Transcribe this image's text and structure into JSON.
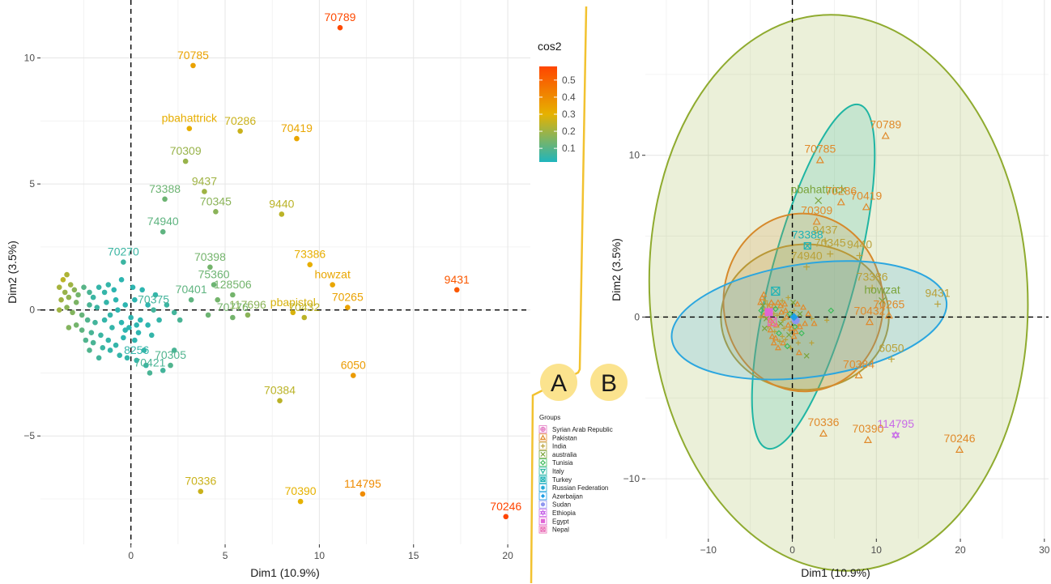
{
  "chart_data": [
    {
      "panel": "A",
      "type": "scatter",
      "xlabel": "Dim1 (10.9%)",
      "ylabel": "Dim2 (3.5%)",
      "xlim": [
        -4.8,
        21.2
      ],
      "ylim": [
        -9.3,
        12.3
      ],
      "xticks": [
        0,
        5,
        10,
        15,
        20
      ],
      "yticks": [
        -5,
        0,
        5,
        10
      ],
      "grid": true,
      "reference_lines": {
        "x": 0,
        "y": 0
      },
      "color_legend": {
        "title": "cos2",
        "ticks": [
          0.1,
          0.2,
          0.3,
          0.4,
          0.5
        ],
        "range": [
          0.02,
          0.58
        ],
        "colors": [
          "#1fb5bd",
          "#e6b200",
          "#ff4500"
        ],
        "placement": "top-right"
      },
      "labeled_points": [
        {
          "label": "70789",
          "x": 11.1,
          "y": 11.2,
          "cos2": 0.57
        },
        {
          "label": "70785",
          "x": 3.3,
          "y": 9.7,
          "cos2": 0.34
        },
        {
          "label": "pbahattrick",
          "x": 3.1,
          "y": 7.2,
          "cos2": 0.31
        },
        {
          "label": "70286",
          "x": 5.8,
          "y": 7.1,
          "cos2": 0.26
        },
        {
          "label": "70419",
          "x": 8.8,
          "y": 6.8,
          "cos2": 0.33
        },
        {
          "label": "70309",
          "x": 2.9,
          "y": 5.9,
          "cos2": 0.19
        },
        {
          "label": "9437",
          "x": 3.9,
          "y": 4.7,
          "cos2": 0.2
        },
        {
          "label": "73388",
          "x": 1.8,
          "y": 4.4,
          "cos2": 0.13
        },
        {
          "label": "74940",
          "x": 1.7,
          "y": 3.1,
          "cos2": 0.11
        },
        {
          "label": "70345",
          "x": 4.5,
          "y": 3.9,
          "cos2": 0.17
        },
        {
          "label": "9440",
          "x": 8.0,
          "y": 3.8,
          "cos2": 0.24
        },
        {
          "label": "70270",
          "x": -0.4,
          "y": 1.9,
          "cos2": 0.06
        },
        {
          "label": "70398",
          "x": 4.2,
          "y": 1.7,
          "cos2": 0.14
        },
        {
          "label": "73386",
          "x": 9.5,
          "y": 1.8,
          "cos2": 0.31
        },
        {
          "label": "75360",
          "x": 4.4,
          "y": 1.0,
          "cos2": 0.13
        },
        {
          "label": "128506",
          "x": 5.4,
          "y": 0.6,
          "cos2": 0.14
        },
        {
          "label": "howzat",
          "x": 10.7,
          "y": 1.0,
          "cos2": 0.33
        },
        {
          "label": "9431",
          "x": 17.3,
          "y": 0.8,
          "cos2": 0.53
        },
        {
          "label": "70265",
          "x": 11.5,
          "y": 0.1,
          "cos2": 0.34
        },
        {
          "label": "70401",
          "x": 3.2,
          "y": 0.4,
          "cos2": 0.11
        },
        {
          "label": "70375",
          "x": 1.2,
          "y": 0.0,
          "cos2": 0.07
        },
        {
          "label": "pbapistol",
          "x": 8.6,
          "y": -0.1,
          "cos2": 0.28
        },
        {
          "label": "70776",
          "x": 5.4,
          "y": -0.3,
          "cos2": 0.14
        },
        {
          "label": "117696",
          "x": 6.2,
          "y": -0.2,
          "cos2": 0.17
        },
        {
          "label": "70432",
          "x": 9.2,
          "y": -0.3,
          "cos2": 0.24
        },
        {
          "label": "70305",
          "x": 2.1,
          "y": -2.2,
          "cos2": 0.09
        },
        {
          "label": "8256",
          "x": 0.3,
          "y": -2.0,
          "cos2": 0.05
        },
        {
          "label": "70421",
          "x": 1.0,
          "y": -2.5,
          "cos2": 0.08
        },
        {
          "label": "6050",
          "x": 11.8,
          "y": -2.6,
          "cos2": 0.36
        },
        {
          "label": "70384",
          "x": 7.9,
          "y": -3.6,
          "cos2": 0.24
        },
        {
          "label": "114795",
          "x": 12.3,
          "y": -7.3,
          "cos2": 0.4
        },
        {
          "label": "70336",
          "x": 3.7,
          "y": -7.2,
          "cos2": 0.26
        },
        {
          "label": "70390",
          "x": 9.0,
          "y": -7.6,
          "cos2": 0.3
        },
        {
          "label": "70246",
          "x": 19.9,
          "y": -8.2,
          "cos2": 0.58
        }
      ],
      "unlabeled_points": [
        [
          -3.4,
          1.4,
          0.22
        ],
        [
          -3.6,
          1.2,
          0.24
        ],
        [
          -3.2,
          1.0,
          0.2
        ],
        [
          -3.8,
          0.9,
          0.21
        ],
        [
          -3.0,
          0.8,
          0.17
        ],
        [
          -3.5,
          0.7,
          0.19
        ],
        [
          -2.8,
          0.6,
          0.14
        ],
        [
          -3.3,
          0.5,
          0.18
        ],
        [
          -3.7,
          0.4,
          0.2
        ],
        [
          -2.5,
          0.9,
          0.1
        ],
        [
          -2.2,
          0.7,
          0.08
        ],
        [
          -2.9,
          0.3,
          0.15
        ],
        [
          -3.4,
          0.1,
          0.17
        ],
        [
          -3.8,
          0.0,
          0.2
        ],
        [
          -3.1,
          -0.1,
          0.16
        ],
        [
          -2.6,
          -0.2,
          0.12
        ],
        [
          -2.2,
          0.2,
          0.08
        ],
        [
          -2.0,
          0.5,
          0.06
        ],
        [
          -1.7,
          0.9,
          0.05
        ],
        [
          -1.4,
          0.7,
          0.05
        ],
        [
          -1.2,
          1.0,
          0.05
        ],
        [
          -0.9,
          0.8,
          0.04
        ],
        [
          -0.5,
          1.2,
          0.04
        ],
        [
          0.1,
          0.9,
          0.04
        ],
        [
          0.6,
          0.8,
          0.04
        ],
        [
          0.2,
          0.4,
          0.04
        ],
        [
          -0.3,
          0.2,
          0.04
        ],
        [
          -0.8,
          0.4,
          0.04
        ],
        [
          -1.3,
          0.3,
          0.05
        ],
        [
          -1.8,
          0.1,
          0.06
        ],
        [
          -2.3,
          -0.4,
          0.09
        ],
        [
          -2.9,
          -0.6,
          0.14
        ],
        [
          -3.3,
          -0.7,
          0.16
        ],
        [
          -2.6,
          -0.8,
          0.11
        ],
        [
          -2.1,
          -0.9,
          0.08
        ],
        [
          -1.6,
          -1.0,
          0.06
        ],
        [
          -2.4,
          -1.2,
          0.09
        ],
        [
          -2.0,
          -1.3,
          0.08
        ],
        [
          -1.5,
          -1.5,
          0.06
        ],
        [
          -1.1,
          -1.6,
          0.05
        ],
        [
          -0.8,
          -1.4,
          0.05
        ],
        [
          -0.4,
          -1.1,
          0.04
        ],
        [
          0.2,
          -1.2,
          0.04
        ],
        [
          0.7,
          -1.6,
          0.05
        ],
        [
          1.1,
          -1.0,
          0.05
        ],
        [
          0.9,
          -0.6,
          0.04
        ],
        [
          0.5,
          -0.4,
          0.04
        ],
        [
          0.0,
          -0.3,
          0.04
        ],
        [
          -0.5,
          -0.5,
          0.04
        ],
        [
          -1.0,
          -0.7,
          0.05
        ],
        [
          -1.4,
          -0.4,
          0.05
        ],
        [
          -1.9,
          -0.5,
          0.07
        ],
        [
          -0.3,
          -0.8,
          0.04
        ],
        [
          0.3,
          -0.6,
          0.04
        ],
        [
          1.5,
          -0.4,
          0.05
        ],
        [
          1.9,
          0.2,
          0.06
        ],
        [
          2.3,
          -0.1,
          0.07
        ],
        [
          2.6,
          -0.4,
          0.08
        ],
        [
          2.3,
          -1.6,
          0.08
        ],
        [
          1.7,
          -2.4,
          0.07
        ],
        [
          0.8,
          -2.2,
          0.06
        ],
        [
          -0.2,
          -1.9,
          0.05
        ],
        [
          -0.6,
          -1.8,
          0.05
        ],
        [
          -1.7,
          -1.9,
          0.07
        ],
        [
          -2.2,
          -1.6,
          0.09
        ],
        [
          -1.2,
          -1.2,
          0.05
        ],
        [
          -0.7,
          0.0,
          0.04
        ],
        [
          -1.1,
          -0.2,
          0.05
        ],
        [
          0.9,
          0.2,
          0.04
        ],
        [
          1.3,
          0.6,
          0.05
        ],
        [
          4.1,
          -0.2,
          0.13
        ],
        [
          4.6,
          0.4,
          0.14
        ],
        [
          -0.1,
          -0.7,
          0.04
        ],
        [
          0.4,
          -0.9,
          0.04
        ]
      ]
    },
    {
      "panel": "B",
      "type": "scatter",
      "xlabel": "Dim1 (10.9%)",
      "ylabel": "Dim2 (3.5%)",
      "xlim": [
        -17.5,
        30.5
      ],
      "ylim": [
        -13.7,
        19.6
      ],
      "xticks": [
        -10,
        0,
        10,
        20,
        30
      ],
      "yticks": [
        -10,
        0,
        10
      ],
      "grid": true,
      "reference_lines": {
        "x": 0,
        "y": 0
      },
      "legend": {
        "title": "Groups",
        "placement": "bottom-left",
        "entries": [
          {
            "name": "Syrian Arab Republic",
            "color": "#e377c2",
            "shape": "circle-plus"
          },
          {
            "name": "Pakistan",
            "color": "#e08a2b",
            "shape": "triangle"
          },
          {
            "name": "India",
            "color": "#b9a13a",
            "shape": "plus"
          },
          {
            "name": "australia",
            "color": "#7aa33a",
            "shape": "x"
          },
          {
            "name": "Tunisia",
            "color": "#3dbb5a",
            "shape": "diamond"
          },
          {
            "name": "Italy",
            "color": "#2ab7a0",
            "shape": "triangle-down"
          },
          {
            "name": "Turkey",
            "color": "#1fb3b5",
            "shape": "square-x"
          },
          {
            "name": "Russian Federation",
            "color": "#22a8d6",
            "shape": "asterisk"
          },
          {
            "name": "Azerbaijan",
            "color": "#1e9ee6",
            "shape": "diamond-plus"
          },
          {
            "name": "Sudan",
            "color": "#8f95ef",
            "shape": "circle"
          },
          {
            "name": "Ethiopia",
            "color": "#c86be8",
            "shape": "star-of-david"
          },
          {
            "name": "Egypt",
            "color": "#e066d6",
            "shape": "square"
          },
          {
            "name": "Nepal",
            "color": "#e86ab5",
            "shape": "square-x"
          }
        ]
      },
      "ellipses": [
        {
          "group": "australia",
          "color": "#8fab2f",
          "center": [
            5.5,
            1.5
          ],
          "semi_axes": [
            22.5,
            17.2
          ],
          "angle_deg": 3
        },
        {
          "group": "Italy",
          "color": "#1fb5a3",
          "center": [
            2.5,
            2.5
          ],
          "semi_axes": [
            5.0,
            11.0
          ],
          "angle_deg": -15
        },
        {
          "group": "India",
          "color": "#b29c3a",
          "center": [
            1.5,
            0.0
          ],
          "semi_axes": [
            10.0,
            4.5
          ],
          "angle_deg": 2
        },
        {
          "group": "Pakistan",
          "color": "#d6892b",
          "center": [
            1.3,
            0.9
          ],
          "semi_axes": [
            9.5,
            5.5
          ],
          "angle_deg": 3
        },
        {
          "group": "Azerbaijan",
          "color": "#2ba6df",
          "center": [
            2.0,
            -0.2
          ],
          "semi_axes": [
            16.5,
            3.5
          ],
          "angle_deg": 8
        }
      ],
      "labeled_points": [
        {
          "label": "70789",
          "x": 11.1,
          "y": 11.2,
          "color": "#e08a2b"
        },
        {
          "label": "70785",
          "x": 3.3,
          "y": 9.7,
          "color": "#e08a2b"
        },
        {
          "label": "pbahattrick",
          "x": 3.1,
          "y": 7.2,
          "color": "#7aa33a"
        },
        {
          "label": "70286",
          "x": 5.8,
          "y": 7.1,
          "color": "#e08a2b"
        },
        {
          "label": "70419",
          "x": 8.8,
          "y": 6.8,
          "color": "#e08a2b"
        },
        {
          "label": "70309",
          "x": 2.9,
          "y": 5.9,
          "color": "#e08a2b"
        },
        {
          "label": "9437",
          "x": 3.9,
          "y": 4.7,
          "color": "#b9a13a"
        },
        {
          "label": "9440",
          "x": 8.0,
          "y": 3.8,
          "color": "#b9a13a"
        },
        {
          "label": "73388",
          "x": 1.8,
          "y": 4.4,
          "color": "#1fb3b5"
        },
        {
          "label": "70345",
          "x": 4.5,
          "y": 3.9,
          "color": "#b9a13a"
        },
        {
          "label": "73386",
          "x": 9.5,
          "y": 1.8,
          "color": "#b9a13a"
        },
        {
          "label": "74940",
          "x": 1.7,
          "y": 3.1,
          "color": "#b9a13a"
        },
        {
          "label": "howzat",
          "x": 10.7,
          "y": 1.0,
          "color": "#7aa33a"
        },
        {
          "label": "9431",
          "x": 17.3,
          "y": 0.8,
          "color": "#b9a13a"
        },
        {
          "label": "70432",
          "x": 9.2,
          "y": -0.3,
          "color": "#e08a2b"
        },
        {
          "label": "70265",
          "x": 11.5,
          "y": 0.1,
          "color": "#e08a2b"
        },
        {
          "label": "6050",
          "x": 11.8,
          "y": -2.6,
          "color": "#b9a13a"
        },
        {
          "label": "70384",
          "x": 7.9,
          "y": -3.6,
          "color": "#e08a2b"
        },
        {
          "label": "70336",
          "x": 3.7,
          "y": -7.2,
          "color": "#e08a2b"
        },
        {
          "label": "114795",
          "x": 12.3,
          "y": -7.3,
          "color": "#c86be8"
        },
        {
          "label": "70246",
          "x": 19.9,
          "y": -8.2,
          "color": "#e08a2b"
        },
        {
          "label": "70390",
          "x": 9.0,
          "y": -7.6,
          "color": "#e08a2b"
        }
      ],
      "group_centers": [
        {
          "group": "Egypt",
          "x": -2.8,
          "y": 0.3,
          "color": "#e066d6"
        },
        {
          "group": "Nepal",
          "x": -2.4,
          "y": -0.3,
          "color": "#e86ab5"
        },
        {
          "group": "Sudan",
          "x": 0.4,
          "y": -0.2,
          "color": "#8f95ef"
        },
        {
          "group": "Azerbaijan",
          "x": 0.2,
          "y": 0.0,
          "color": "#1e9ee6"
        },
        {
          "group": "Turkey",
          "x": -2.0,
          "y": 1.6,
          "color": "#1fb3b5"
        }
      ]
    }
  ],
  "panel_labels": {
    "a": "A",
    "b": "B",
    "badge_color": "#fbe38e",
    "divider_color": "#f2c230"
  }
}
